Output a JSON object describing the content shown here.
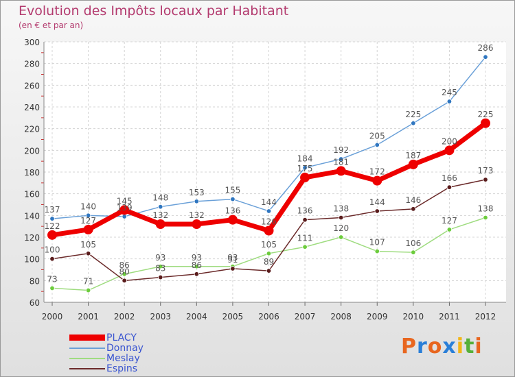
{
  "title": "Evolution des Impôts locaux par Habitant",
  "subtitle": "(en € et par an)",
  "brand": {
    "letters": [
      "P",
      "r",
      "o",
      "x",
      "i",
      "t",
      "i"
    ],
    "colors": [
      "#e8661f",
      "#2a7fd8",
      "#e8661f",
      "#2a7fd8",
      "#f2b517",
      "#56b03a",
      "#e8661f"
    ]
  },
  "chart_data": {
    "type": "line",
    "title": "Evolution des Impôts locaux par Habitant",
    "subtitle": "(en € et par an)",
    "xlabel": "",
    "ylabel": "",
    "x": [
      "2000",
      "2001",
      "2002",
      "2003",
      "2004",
      "2005",
      "2006",
      "2007",
      "2008",
      "2009",
      "2010",
      "2011",
      "2012"
    ],
    "ylim": [
      60,
      300
    ],
    "yticks": [
      60,
      80,
      100,
      120,
      140,
      160,
      180,
      200,
      220,
      240,
      260,
      280,
      300
    ],
    "legend_position": "bottom-left",
    "series": [
      {
        "name": "PLACY",
        "values": [
          122,
          127,
          145,
          132,
          132,
          136,
          126,
          175,
          181,
          172,
          187,
          200,
          225
        ],
        "color": "#ee0000",
        "marker_color": "#ee0000"
      },
      {
        "name": "Donnay",
        "values": [
          137,
          140,
          139,
          148,
          153,
          155,
          144,
          184,
          192,
          205,
          225,
          245,
          286
        ],
        "color": "#6aa0d8",
        "marker_color": "#2f76c0"
      },
      {
        "name": "Meslay",
        "values": [
          73,
          71,
          86,
          93,
          93,
          93,
          105,
          111,
          120,
          107,
          106,
          127,
          138
        ],
        "color": "#9fdc80",
        "marker_color": "#6ccc3c"
      },
      {
        "name": "Espins",
        "values": [
          100,
          105,
          80,
          83,
          86,
          91,
          89,
          136,
          138,
          144,
          146,
          166,
          173
        ],
        "color": "#6b2a2a",
        "marker_color": "#5a1c1c"
      }
    ]
  }
}
